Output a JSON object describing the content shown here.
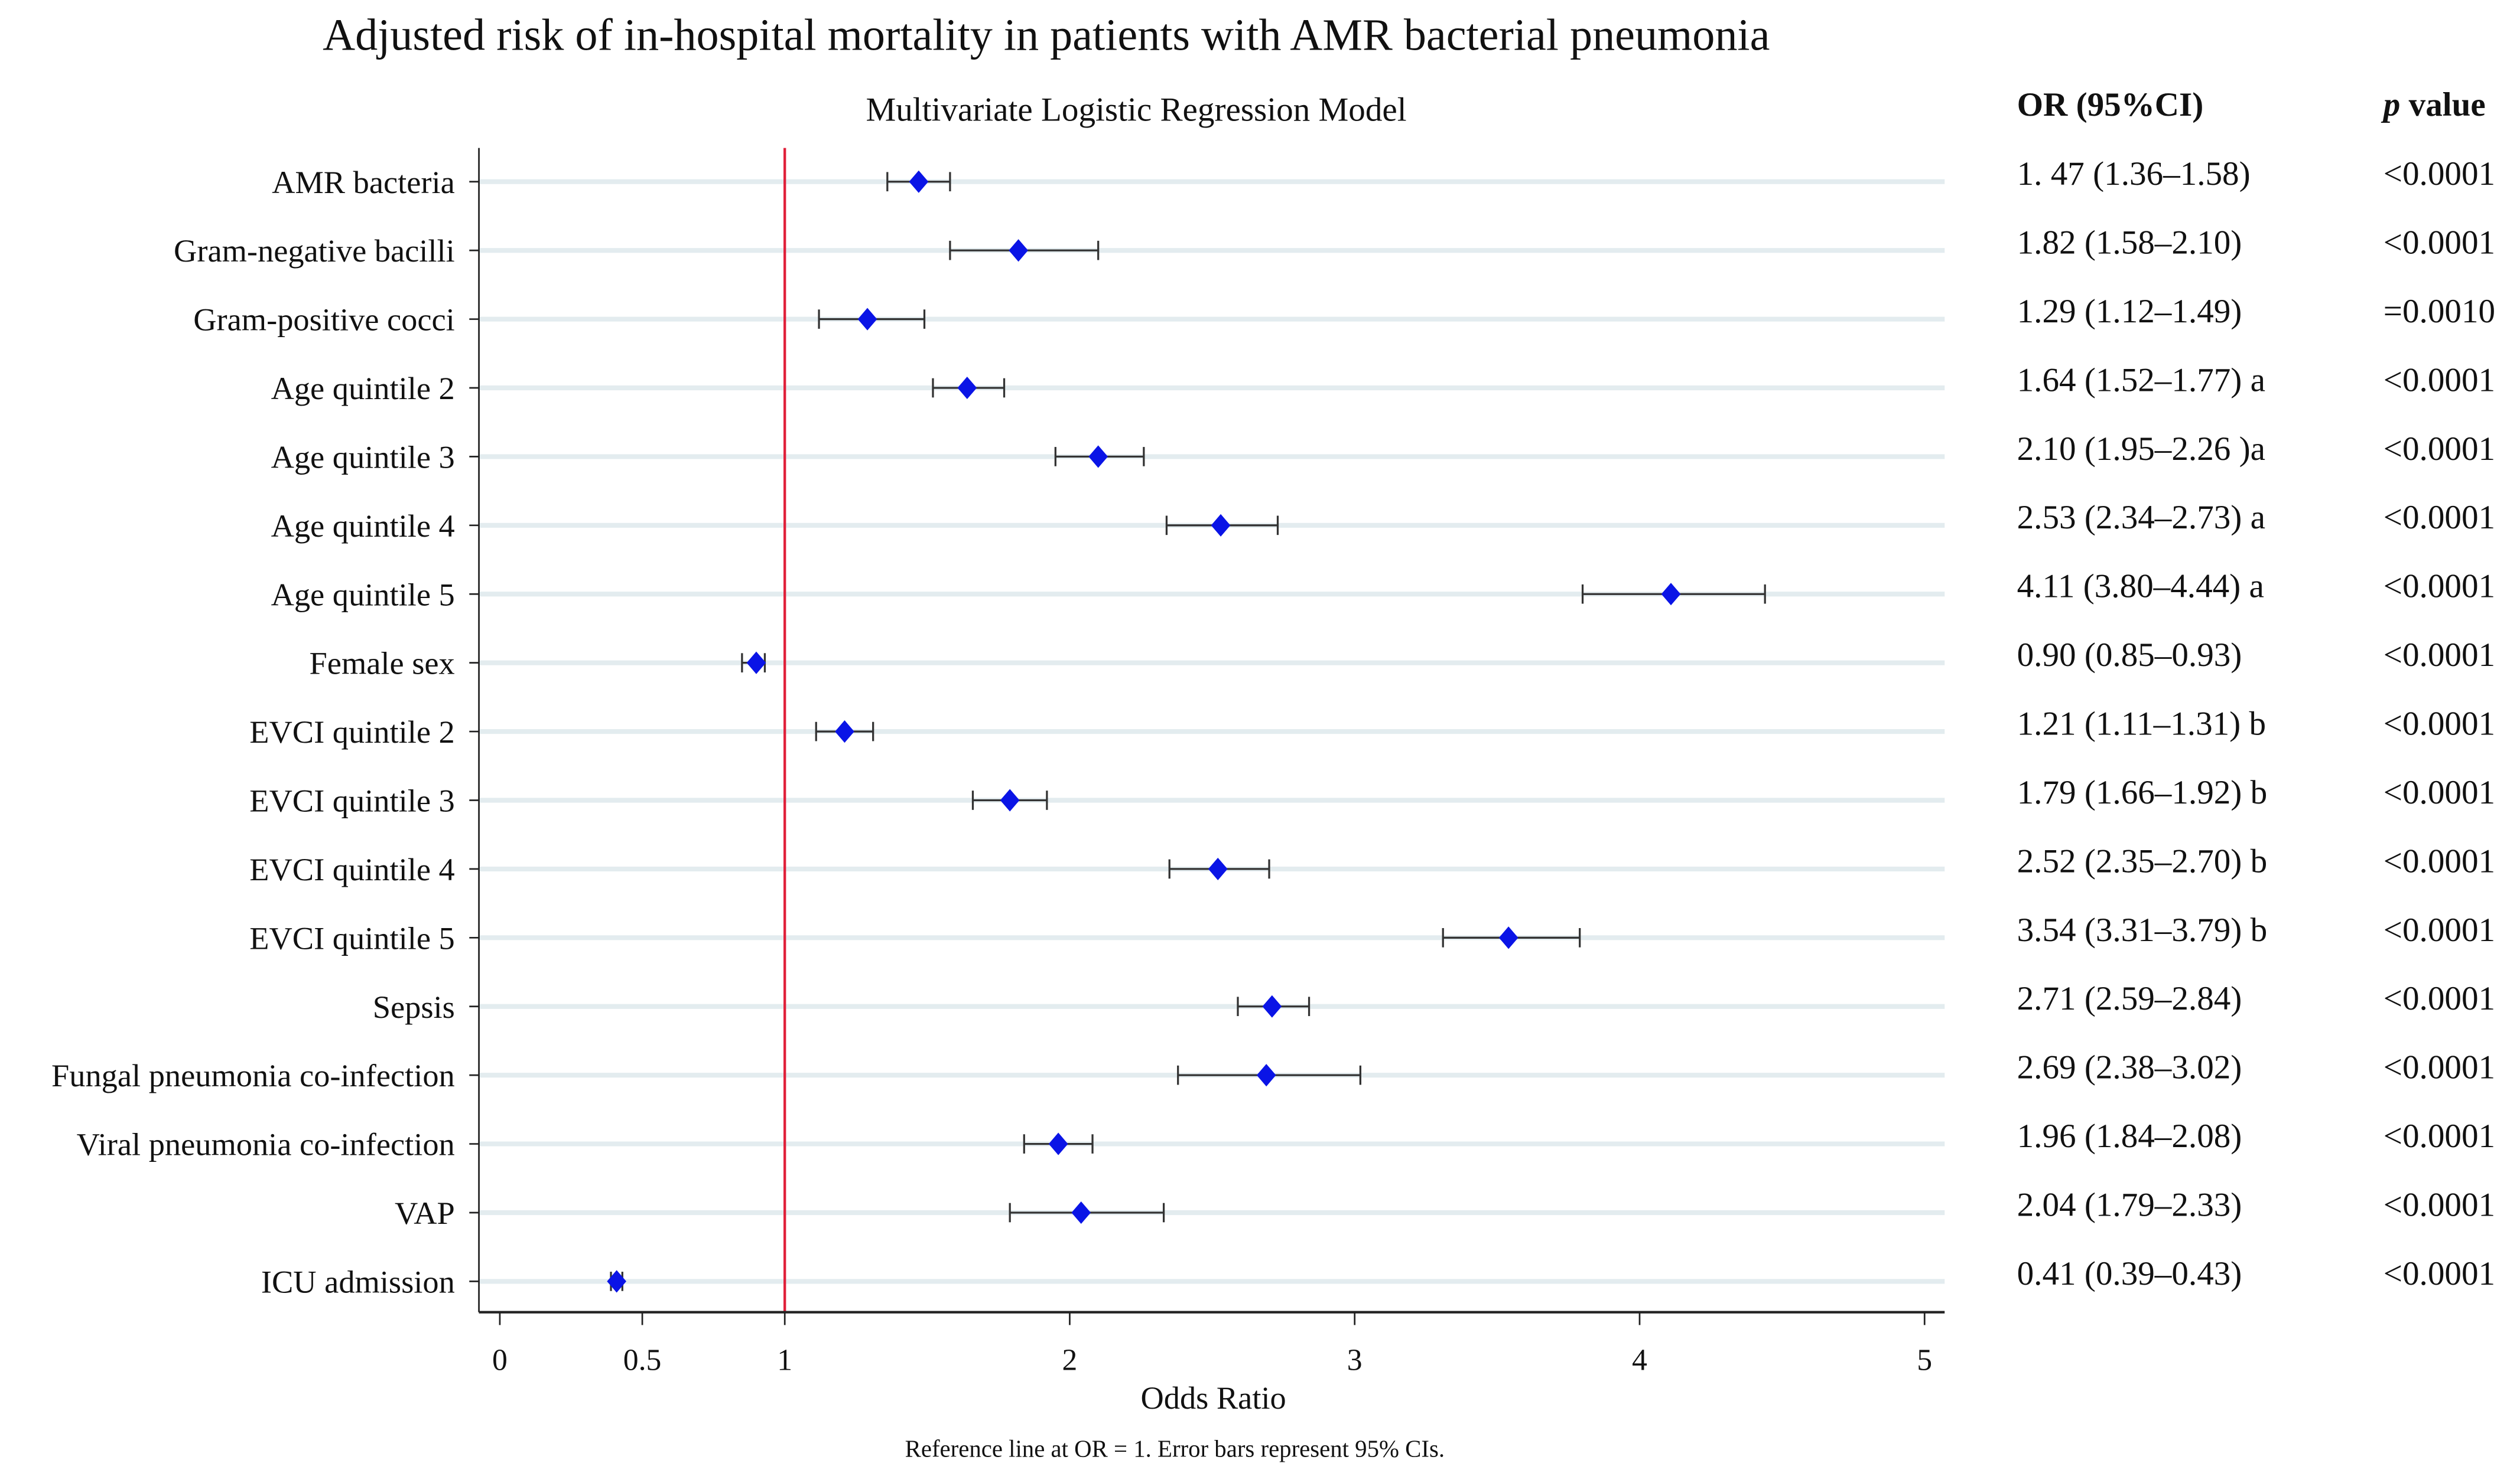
{
  "chart_data": {
    "type": "forest",
    "title": "Adjusted risk of in-hospital mortality in patients with AMR bacterial pneumonia",
    "subtitle": "Multivariate Logistic Regression Model",
    "xlabel": "Odds Ratio",
    "footnote": "Reference line at OR = 1. Error bars represent 95% CIs.",
    "xlim": [
      0,
      5
    ],
    "xticks": [
      0,
      0.5,
      1,
      2,
      3,
      4,
      5
    ],
    "xtick_labels": [
      "0",
      "0.5",
      "1",
      "2",
      "3",
      "4",
      "5"
    ],
    "reference_line": 1,
    "colors": {
      "marker": "#0a14e6",
      "reference": "#e0203a",
      "grid": "#e3ecef",
      "ci": "#333333"
    },
    "table_headers": {
      "or": "OR (95%CI)",
      "p_italic": "p",
      "p_rest": " value"
    },
    "rows": [
      {
        "label": "AMR bacteria",
        "or": 1.47,
        "lo": 1.36,
        "hi": 1.58,
        "or_text": "1. 47 (1.36–1.58)",
        "p": "<0.0001"
      },
      {
        "label": "Gram-negative bacilli",
        "or": 1.82,
        "lo": 1.58,
        "hi": 2.1,
        "or_text": "1.82 (1.58–2.10)",
        "p": "<0.0001"
      },
      {
        "label": "Gram-positive cocci",
        "or": 1.29,
        "lo": 1.12,
        "hi": 1.49,
        "or_text": "1.29 (1.12–1.49)",
        "p": "=0.0010"
      },
      {
        "label": "Age quintile 2",
        "or": 1.64,
        "lo": 1.52,
        "hi": 1.77,
        "or_text": "1.64 (1.52–1.77) a",
        "p": "<0.0001"
      },
      {
        "label": "Age quintile 3",
        "or": 2.1,
        "lo": 1.95,
        "hi": 2.26,
        "or_text": "2.10 (1.95–2.26 )a",
        "p": "<0.0001"
      },
      {
        "label": "Age quintile 4",
        "or": 2.53,
        "lo": 2.34,
        "hi": 2.73,
        "or_text": "2.53 (2.34–2.73) a",
        "p": "<0.0001"
      },
      {
        "label": "Age quintile 5",
        "or": 4.11,
        "lo": 3.8,
        "hi": 4.44,
        "or_text": "4.11 (3.80–4.44) a",
        "p": "<0.0001"
      },
      {
        "label": "Female sex",
        "or": 0.9,
        "lo": 0.85,
        "hi": 0.93,
        "or_text": "0.90 (0.85–0.93)",
        "p": "<0.0001"
      },
      {
        "label": "EVCI quintile 2",
        "or": 1.21,
        "lo": 1.11,
        "hi": 1.31,
        "or_text": "1.21 (1.11–1.31) b",
        "p": "<0.0001"
      },
      {
        "label": "EVCI quintile 3",
        "or": 1.79,
        "lo": 1.66,
        "hi": 1.92,
        "or_text": "1.79 (1.66–1.92) b",
        "p": "<0.0001"
      },
      {
        "label": "EVCI quintile 4",
        "or": 2.52,
        "lo": 2.35,
        "hi": 2.7,
        "or_text": "2.52 (2.35–2.70) b",
        "p": "<0.0001"
      },
      {
        "label": "EVCI quintile 5",
        "or": 3.54,
        "lo": 3.31,
        "hi": 3.79,
        "or_text": "3.54 (3.31–3.79) b",
        "p": "<0.0001"
      },
      {
        "label": "Sepsis",
        "or": 2.71,
        "lo": 2.59,
        "hi": 2.84,
        "or_text": "2.71 (2.59–2.84)",
        "p": "<0.0001"
      },
      {
        "label": "Fungal pneumonia co-infection",
        "or": 2.69,
        "lo": 2.38,
        "hi": 3.02,
        "or_text": "2.69 (2.38–3.02)",
        "p": "<0.0001"
      },
      {
        "label": "Viral pneumonia co-infection",
        "or": 1.96,
        "lo": 1.84,
        "hi": 2.08,
        "or_text": "1.96 (1.84–2.08)",
        "p": "<0.0001"
      },
      {
        "label": "VAP",
        "or": 2.04,
        "lo": 1.79,
        "hi": 2.33,
        "or_text": "2.04 (1.79–2.33)",
        "p": "<0.0001"
      },
      {
        "label": "ICU admission",
        "or": 0.41,
        "lo": 0.39,
        "hi": 0.43,
        "or_text": "0.41 (0.39–0.43)",
        "p": "<0.0001"
      }
    ]
  }
}
